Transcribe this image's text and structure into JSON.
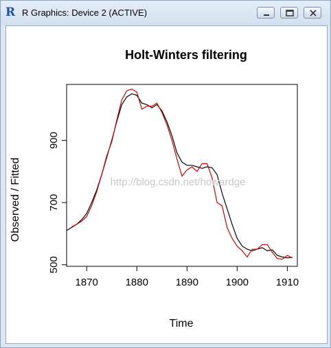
{
  "window": {
    "title": "R Graphics: Device 2 (ACTIVE)",
    "icon": "r-logo-icon",
    "controls": [
      "minimize-icon",
      "maximize-icon",
      "close-icon"
    ]
  },
  "watermark": "http://blog.csdn.net/howardge",
  "chart_data": {
    "type": "line",
    "title": "Holt-Winters filtering",
    "xlabel": "Time",
    "ylabel": "Observed / Fitted",
    "xlim": [
      1866,
      1912
    ],
    "ylim": [
      495,
      1080
    ],
    "x_ticks": [
      1870,
      1880,
      1890,
      1900,
      1910
    ],
    "y_ticks": [
      500,
      700,
      900
    ],
    "grid": false,
    "legend": "none",
    "series": [
      {
        "color": "#000000",
        "x": [
          1866,
          1867,
          1868,
          1869,
          1870,
          1871,
          1872,
          1873,
          1874,
          1875,
          1876,
          1877,
          1878,
          1879,
          1880,
          1881,
          1882,
          1883,
          1884,
          1885,
          1886,
          1887,
          1888,
          1889,
          1890,
          1891,
          1892,
          1893,
          1894,
          1895,
          1896,
          1897,
          1898,
          1899,
          1900,
          1901,
          1902,
          1903,
          1904,
          1905,
          1906,
          1907,
          1908,
          1909,
          1910,
          1911
        ],
        "values": [
          610,
          620,
          630,
          645,
          665,
          700,
          740,
          790,
          845,
          900,
          960,
          1015,
          1040,
          1050,
          1045,
          1020,
          1015,
          1005,
          1015,
          995,
          960,
          915,
          860,
          830,
          820,
          820,
          815,
          810,
          815,
          812,
          790,
          730,
          680,
          630,
          585,
          560,
          550,
          545,
          550,
          555,
          545,
          548,
          530,
          525,
          522,
          524
        ]
      },
      {
        "color": "#d00000",
        "x": [
          1867,
          1868,
          1869,
          1870,
          1871,
          1872,
          1873,
          1874,
          1875,
          1876,
          1877,
          1878,
          1879,
          1880,
          1881,
          1882,
          1883,
          1884,
          1885,
          1886,
          1887,
          1888,
          1889,
          1890,
          1891,
          1892,
          1893,
          1894,
          1895,
          1896,
          1897,
          1898,
          1899,
          1900,
          1901,
          1902,
          1903,
          1904,
          1905,
          1906,
          1907,
          1908,
          1909,
          1910,
          1911
        ],
        "values": [
          622,
          630,
          640,
          655,
          690,
          735,
          790,
          850,
          895,
          965,
          1030,
          1060,
          1065,
          1055,
          1000,
          1010,
          1010,
          1020,
          990,
          950,
          900,
          840,
          785,
          805,
          815,
          800,
          825,
          825,
          780,
          700,
          690,
          620,
          585,
          560,
          545,
          525,
          550,
          550,
          565,
          565,
          540,
          520,
          518,
          530,
          522
        ]
      }
    ]
  }
}
